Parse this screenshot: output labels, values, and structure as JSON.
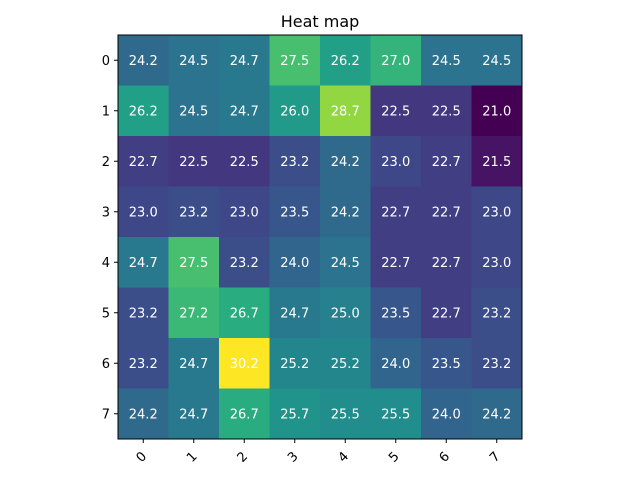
{
  "chart_data": {
    "type": "heatmap",
    "title": "Heat map",
    "xlabel": "",
    "ylabel": "",
    "x_categories": [
      "0",
      "1",
      "2",
      "3",
      "4",
      "5",
      "6",
      "7"
    ],
    "y_categories": [
      "0",
      "1",
      "2",
      "3",
      "4",
      "5",
      "6",
      "7"
    ],
    "values": [
      [
        24.2,
        24.5,
        24.7,
        27.5,
        26.2,
        27.0,
        24.5,
        24.5
      ],
      [
        26.2,
        24.5,
        24.7,
        26.0,
        28.7,
        22.5,
        22.5,
        21.0
      ],
      [
        22.7,
        22.5,
        22.5,
        23.2,
        24.2,
        23.0,
        22.7,
        21.5
      ],
      [
        23.0,
        23.2,
        23.0,
        23.5,
        24.2,
        22.7,
        22.7,
        23.0
      ],
      [
        24.7,
        27.5,
        23.2,
        24.0,
        24.5,
        22.7,
        22.7,
        23.0
      ],
      [
        23.2,
        27.2,
        26.7,
        24.7,
        25.0,
        23.5,
        22.7,
        23.2
      ],
      [
        23.2,
        24.7,
        30.2,
        25.2,
        25.2,
        24.0,
        23.5,
        23.2
      ],
      [
        24.2,
        24.7,
        26.7,
        25.7,
        25.5,
        25.5,
        24.0,
        24.2
      ]
    ],
    "colormap": "viridis",
    "value_range": [
      21.0,
      30.2
    ],
    "cell_text_color": "#ffffff",
    "x_tick_rotation_deg": 45,
    "grid": false
  }
}
